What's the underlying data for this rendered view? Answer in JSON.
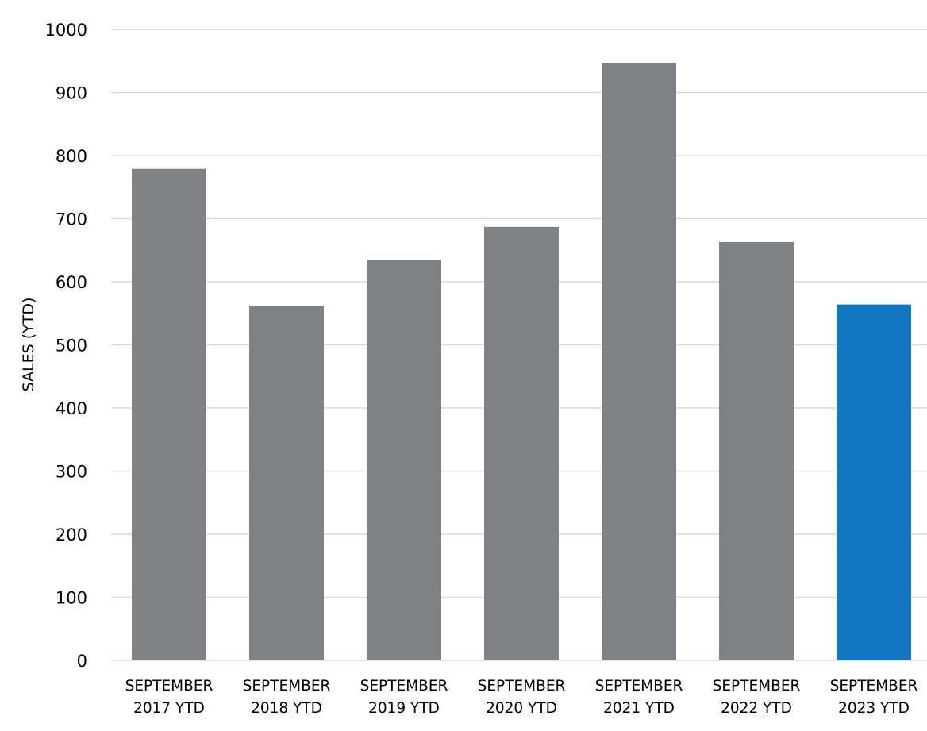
{
  "chart_data": {
    "type": "bar",
    "title": "",
    "xlabel": "",
    "ylabel": "SALES (YTD)",
    "ylim": [
      0,
      1000
    ],
    "yticks": [
      0,
      100,
      200,
      300,
      400,
      500,
      600,
      700,
      800,
      900,
      1000
    ],
    "grid": true,
    "categories": [
      [
        "SEPTEMBER",
        "2017 YTD"
      ],
      [
        "SEPTEMBER",
        "2018 YTD"
      ],
      [
        "SEPTEMBER",
        "2019 YTD"
      ],
      [
        "SEPTEMBER",
        "2020 YTD"
      ],
      [
        "SEPTEMBER",
        "2021 YTD"
      ],
      [
        "SEPTEMBER",
        "2022 YTD"
      ],
      [
        "SEPTEMBER",
        "2023 YTD"
      ]
    ],
    "values": [
      779,
      562,
      635,
      687,
      946,
      663,
      564
    ],
    "bar_colors": [
      "#808184",
      "#808184",
      "#808184",
      "#808184",
      "#808184",
      "#808184",
      "#1276c0"
    ],
    "colors": {
      "default_bar": "#808184",
      "highlight_bar": "#1276c0",
      "grid": "#d9d9d9"
    }
  }
}
